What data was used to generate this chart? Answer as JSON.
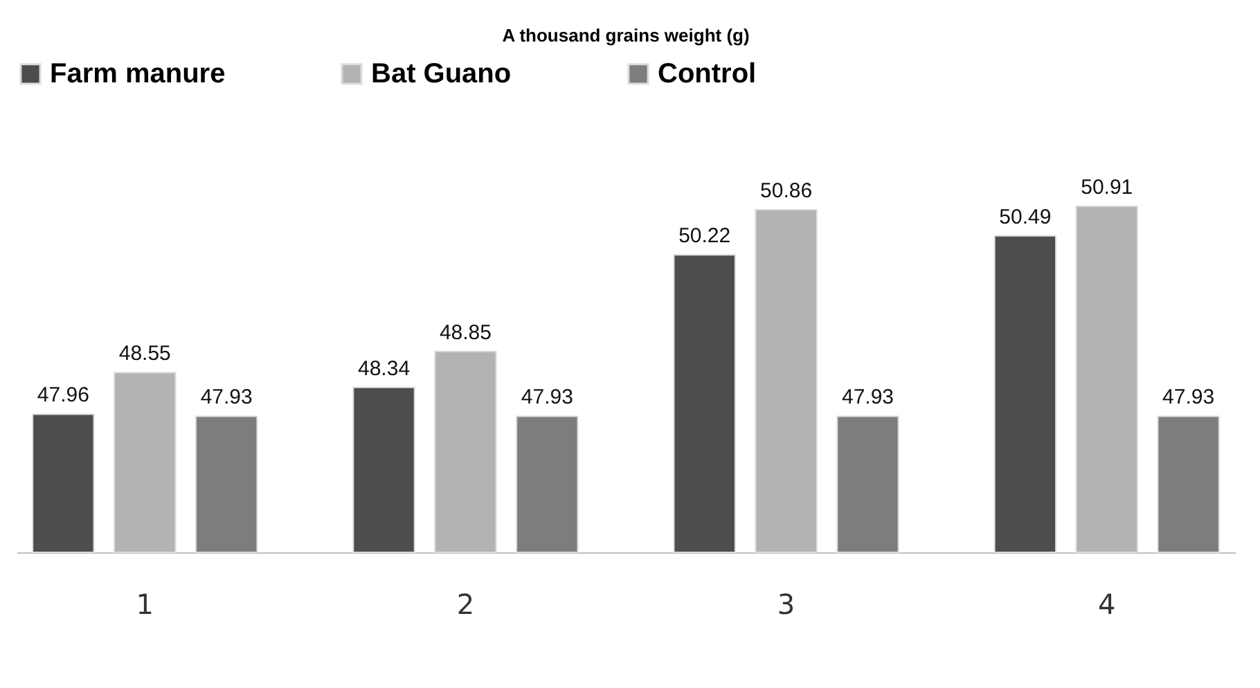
{
  "chart_data": {
    "type": "bar",
    "title": "A thousand grains weight (g)",
    "categories": [
      "1",
      "2",
      "3",
      "4"
    ],
    "series": [
      {
        "name": "Farm manure",
        "color": "#4d4d4d",
        "values": [
          47.96,
          48.34,
          50.22,
          50.49
        ]
      },
      {
        "name": "Bat Guano",
        "color": "#b3b3b3",
        "values": [
          48.55,
          48.85,
          50.86,
          50.91
        ]
      },
      {
        "name": "Control",
        "color": "#7d7d7d",
        "values": [
          47.93,
          47.93,
          47.93,
          47.93
        ]
      }
    ],
    "ylim": [
      46,
      50.91
    ],
    "data_labels": true,
    "grid": false,
    "legend": "top",
    "tick_labels": "x"
  }
}
